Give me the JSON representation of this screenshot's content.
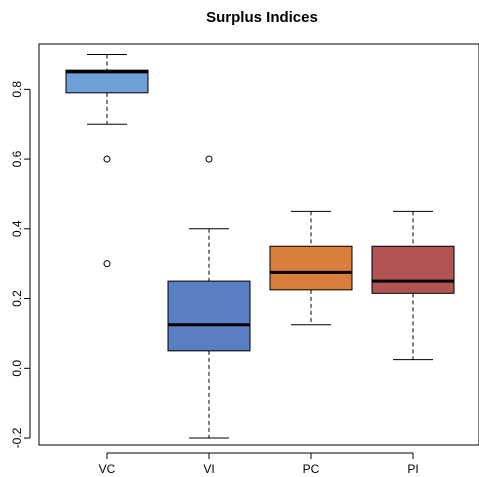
{
  "chart_data": {
    "type": "box",
    "title": "Surplus Indices",
    "xlabel": "",
    "ylabel": "",
    "ylim": [
      -0.22,
      0.93
    ],
    "yticks": [
      -0.2,
      0.0,
      0.2,
      0.4,
      0.6,
      0.8
    ],
    "ytick_labels": [
      "-0.2",
      "0.0",
      "0.2",
      "0.4",
      "0.6",
      "0.8"
    ],
    "categories": [
      "VC",
      "VI",
      "PC",
      "PI"
    ],
    "series": [
      {
        "category": "VC",
        "min": 0.7,
        "q1": 0.79,
        "median": 0.85,
        "q3": 0.855,
        "max": 0.9,
        "outliers": [
          0.6,
          0.3
        ],
        "color": "#6f9fd8"
      },
      {
        "category": "VI",
        "min": -0.2,
        "q1": 0.05,
        "median": 0.125,
        "q3": 0.25,
        "max": 0.4,
        "outliers": [
          0.6
        ],
        "color": "#5b7fc4"
      },
      {
        "category": "PC",
        "min": 0.125,
        "q1": 0.225,
        "median": 0.275,
        "q3": 0.35,
        "max": 0.45,
        "outliers": [],
        "color": "#db7d3c"
      },
      {
        "category": "PI",
        "min": 0.025,
        "q1": 0.215,
        "median": 0.25,
        "q3": 0.35,
        "max": 0.45,
        "outliers": [],
        "color": "#b05454"
      }
    ],
    "grid": false,
    "legend": "none"
  }
}
